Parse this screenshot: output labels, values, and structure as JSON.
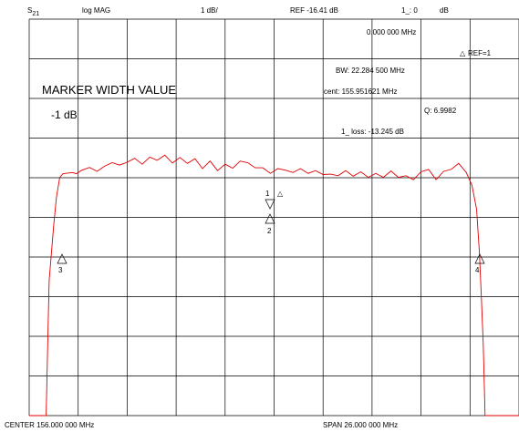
{
  "header": {
    "channel": "S",
    "channel_sub": "21",
    "format": "log MAG",
    "scale": "1 dB/",
    "ref": "REF -16.41 dB",
    "marker_prefix": "1_: 0",
    "marker_unit": "dB"
  },
  "readout": {
    "marker_freq": "0.000 000 MHz",
    "ref_label": "REF=1",
    "bw": "BW:  22.284 500 MHz",
    "cent": "cent:  155.951621 MHz",
    "q": "Q: 6.9982",
    "loss": "1_ loss: -13.245 dB"
  },
  "overlay": {
    "title": "MARKER WIDTH VALUE",
    "value": "-1 dB"
  },
  "footer": {
    "center": "CENTER  156.000 000 MHz",
    "span": "SPAN   26.000 000 MHz"
  },
  "markers": {
    "m1": "1",
    "m2": "2",
    "m3": "3",
    "m4": "4"
  },
  "chart_data": {
    "type": "line",
    "x_unit": "MHz",
    "y_unit": "dB",
    "xlim": [
      143.0,
      169.0
    ],
    "ylim": [
      -26.41,
      -16.41
    ],
    "grid": true,
    "trace_color": "#e00000",
    "series": [
      {
        "x": [
          143.0,
          143.9,
          144.0,
          144.06,
          144.3,
          144.45,
          144.62,
          144.8,
          145.3,
          145.5,
          145.8,
          146.2,
          146.6,
          147.0,
          147.4,
          147.8,
          148.2,
          148.6,
          149.0,
          149.4,
          149.8,
          150.2,
          150.6,
          151.0,
          151.4,
          151.8,
          152.2,
          152.6,
          153.0,
          153.4,
          153.8,
          154.2,
          154.6,
          155.0,
          155.4,
          155.8,
          156.2,
          156.6,
          157.0,
          157.4,
          157.8,
          158.2,
          158.6,
          159.0,
          159.4,
          159.8,
          160.2,
          160.6,
          161.0,
          161.4,
          161.8,
          162.2,
          162.6,
          163.0,
          163.4,
          163.8,
          164.2,
          164.6,
          165.0,
          165.4,
          165.8,
          166.2,
          166.5,
          166.75,
          166.9,
          167.0,
          167.1,
          167.2,
          168.0,
          169.0
        ],
        "y": [
          -26.41,
          -26.41,
          -24.2,
          -23.0,
          -21.6,
          -20.9,
          -20.4,
          -20.31,
          -20.28,
          -20.31,
          -20.22,
          -20.15,
          -20.25,
          -20.12,
          -20.03,
          -20.09,
          -20.02,
          -19.92,
          -20.07,
          -19.89,
          -19.97,
          -19.84,
          -20.04,
          -19.9,
          -20.05,
          -19.93,
          -20.18,
          -19.99,
          -20.23,
          -20.07,
          -20.17,
          -19.99,
          -20.03,
          -20.16,
          -20.16,
          -20.3,
          -20.18,
          -20.22,
          -20.28,
          -20.18,
          -20.3,
          -20.23,
          -20.33,
          -20.32,
          -20.36,
          -20.23,
          -20.37,
          -20.26,
          -20.4,
          -20.3,
          -20.4,
          -20.24,
          -20.4,
          -20.36,
          -20.46,
          -20.26,
          -20.2,
          -20.46,
          -20.25,
          -20.2,
          -20.05,
          -20.28,
          -20.6,
          -21.2,
          -22.3,
          -23.4,
          -24.6,
          -26.41,
          -26.41,
          -26.41
        ]
      }
    ]
  }
}
